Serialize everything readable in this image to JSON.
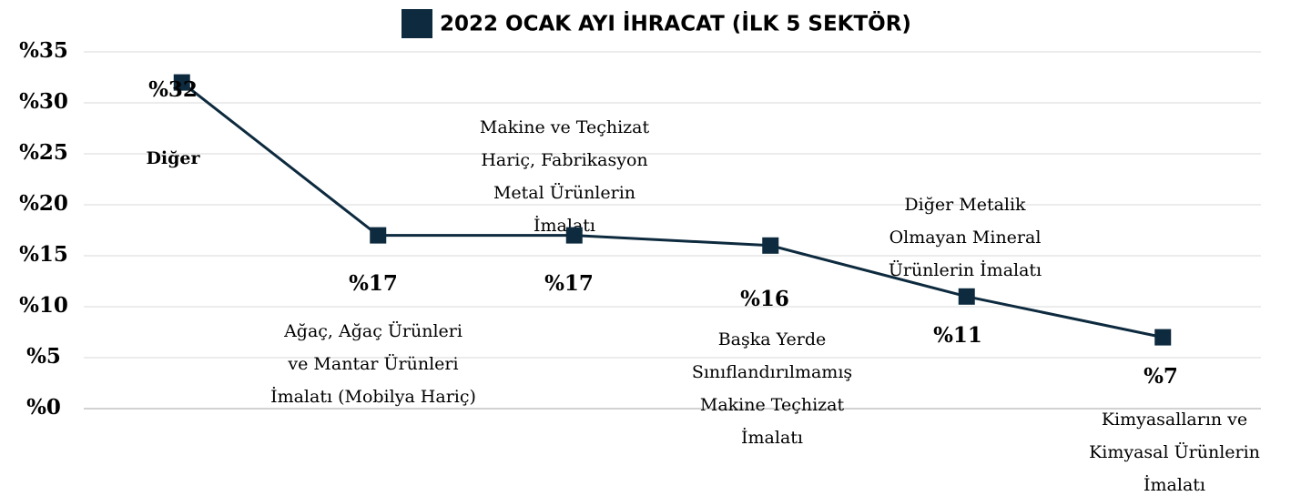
{
  "chart_data": {
    "type": "line",
    "categories": [
      "Diğer",
      "Ağaç, Ağaç Ürünleri\nve Mantar Ürünleri\nİmalatı (Mobilya Hariç)",
      "Makine ve Teçhizat\nHariç, Fabrikasyon\nMetal Ürünlerin\nİmalatı",
      "Başka Yerde\nSınıflandırılmamış\nMakine Teçhizat\nİmalatı",
      "Diğer Metalik\nOlmayan Mineral\nÜrünlerin İmalatı",
      "Kimyasalların ve\nKimyasal Ürünlerin\nİmalatı"
    ],
    "series": [
      {
        "name": "2022 OCAK AYI İHRACAT (İLK 5 SEKTÖR)",
        "color": "#0d2a3e",
        "values": [
          32,
          17,
          17,
          16,
          11,
          7
        ],
        "value_labels": [
          "%32",
          "%17",
          "%17",
          "%16",
          "%11",
          "%7"
        ]
      }
    ],
    "ylim": [
      0,
      35
    ],
    "yticks": [
      {
        "value": 0,
        "label": "%0"
      },
      {
        "value": 5,
        "label": "%5"
      },
      {
        "value": 10,
        "label": "%10"
      },
      {
        "value": 15,
        "label": "%15"
      },
      {
        "value": 20,
        "label": "%20"
      },
      {
        "value": 25,
        "label": "%25"
      },
      {
        "value": 30,
        "label": "%30"
      },
      {
        "value": 35,
        "label": "%35"
      }
    ],
    "grid": true,
    "legend": "top"
  }
}
